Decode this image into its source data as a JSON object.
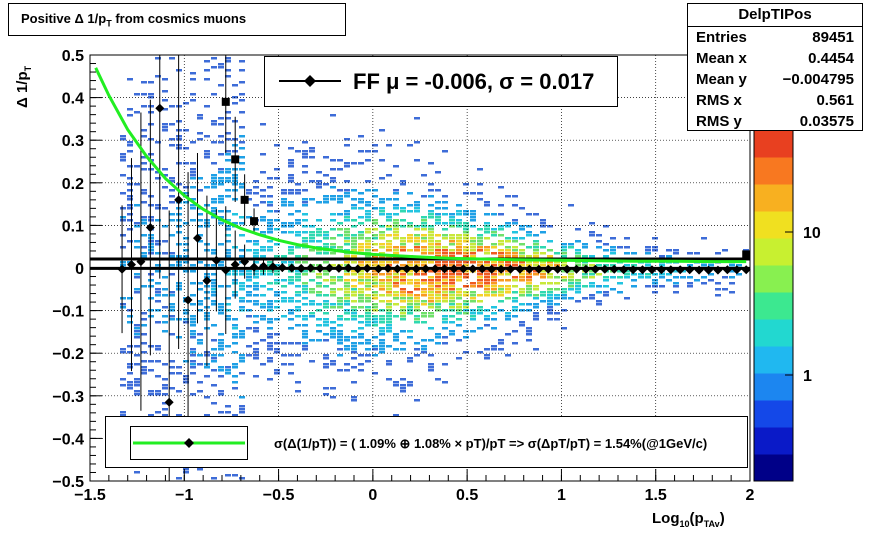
{
  "title": "Positive Δ 1/p_T  from cosmics muons",
  "title_parts": {
    "pre": "Positive Δ 1/p",
    "sub": "T",
    "post": "  from cosmics muons"
  },
  "x_axis_title": {
    "pre": "Log",
    "sub1": "10",
    "mid": "(p",
    "sub2": "TAv",
    "post": ")"
  },
  "y_axis_title": {
    "pre": "Δ 1/p",
    "sub": "T"
  },
  "stats": {
    "name": "DelpTIPos",
    "rows": [
      {
        "label": "Entries",
        "value": "89451"
      },
      {
        "label": "Mean x",
        "value": "0.4454"
      },
      {
        "label": "Mean y",
        "value": "−0.004795"
      },
      {
        "label": "RMS x",
        "value": "0.561"
      },
      {
        "label": "RMS y",
        "value": "0.03575"
      }
    ]
  },
  "fit_label": "FF μ = -0.006, σ =   0.017",
  "legend_label": "σ(Δ(1/pT)) = ( 1.09% ⊕  1.08% × pT)/pT => σ(ΔpT/pT) =  1.54%(@1GeV/c)",
  "colors": {
    "fit_curve": "#22ee22",
    "markers": "#000000",
    "band_lines": "#000000"
  },
  "chart_data": {
    "type": "heatmap",
    "xlim": [
      -1.5,
      2.0
    ],
    "ylim": [
      -0.5,
      0.5
    ],
    "x_ticks": [
      -1.5,
      -1,
      -0.5,
      0,
      0.5,
      1,
      1.5,
      2
    ],
    "x_tick_labels": [
      "−1.5",
      "−1",
      "−0.5",
      "0",
      "0.5",
      "1",
      "1.5",
      "2"
    ],
    "y_ticks": [
      -0.5,
      -0.4,
      -0.3,
      -0.2,
      -0.1,
      0,
      0.1,
      0.2,
      0.3,
      0.4,
      0.5
    ],
    "y_tick_labels": [
      "−0.5",
      "−0.4",
      "−0.3",
      "−0.2",
      "−0.1",
      "0",
      "0.1",
      "0.2",
      "0.3",
      "0.4",
      "0.5"
    ],
    "grid": true,
    "z_scale": "log",
    "z_tick_labels": [
      "1",
      "10"
    ],
    "mean_points": {
      "x": [
        -1.33,
        -1.28,
        -1.23,
        -1.18,
        -1.13,
        -1.08,
        -1.03,
        -0.98,
        -0.93,
        -0.88,
        -0.83,
        -0.78,
        -0.73,
        -0.68,
        -0.63,
        -0.58,
        -0.53,
        -0.48,
        -0.43,
        -0.38,
        -0.33,
        -0.28,
        -0.23,
        -0.18,
        -0.13,
        -0.08,
        -0.03,
        0.03,
        0.08,
        0.13,
        0.18,
        0.23,
        0.28,
        0.33,
        0.38,
        0.43,
        0.48,
        0.53,
        0.58,
        0.63,
        0.68,
        0.73,
        0.78,
        0.83,
        0.88,
        0.93,
        0.98,
        1.03,
        1.08,
        1.13,
        1.18,
        1.23,
        1.28,
        1.33,
        1.38,
        1.43,
        1.48,
        1.53,
        1.58,
        1.63,
        1.68,
        1.73,
        1.78,
        1.83,
        1.88,
        1.93,
        1.98
      ],
      "y": [
        -0.003,
        0.008,
        0.015,
        0.095,
        0.375,
        -0.315,
        0.16,
        -0.075,
        0.07,
        -0.03,
        0.018,
        -0.005,
        0.008,
        0.015,
        0.002,
        0.004,
        0.003,
        0.001,
        0.0,
        -0.001,
        0.0,
        -0.001,
        0.0,
        -0.001,
        0.0,
        -0.002,
        -0.001,
        -0.002,
        -0.001,
        -0.002,
        -0.002,
        -0.002,
        -0.002,
        -0.002,
        -0.002,
        -0.002,
        -0.002,
        -0.002,
        -0.002,
        -0.003,
        -0.003,
        -0.003,
        -0.003,
        -0.003,
        -0.003,
        -0.003,
        -0.003,
        -0.003,
        -0.003,
        -0.003,
        -0.003,
        -0.003,
        -0.003,
        -0.004,
        -0.004,
        -0.004,
        -0.004,
        -0.004,
        -0.004,
        -0.004,
        -0.004,
        -0.005,
        -0.005,
        -0.005,
        -0.004,
        -0.004,
        -0.004
      ],
      "yerr": [
        0.15,
        0.25,
        0.35,
        0.3,
        0.4,
        0.45,
        0.35,
        0.3,
        0.2,
        0.2,
        0.12,
        0.15,
        0.08,
        0.04,
        0.02,
        0.02,
        0.015,
        0.01,
        0.01,
        0.008,
        0.006,
        0.005,
        0.005,
        0.004,
        0.004,
        0.003,
        0.003,
        0.003,
        0.003,
        0.003,
        0.003,
        0.003,
        0.003,
        0.003,
        0.003,
        0.003,
        0.003,
        0.003,
        0.003,
        0.003,
        0.003,
        0.003,
        0.003,
        0.003,
        0.003,
        0.003,
        0.003,
        0.003,
        0.003,
        0.003,
        0.003,
        0.003,
        0.003,
        0.003,
        0.003,
        0.003,
        0.003,
        0.003,
        0.003,
        0.003,
        0.003,
        0.003,
        0.003,
        0.003,
        0.003,
        0.003,
        0.003
      ]
    },
    "sigma_points": {
      "x": [
        -0.78,
        -0.73,
        -0.68,
        -0.63,
        1.98
      ],
      "y": [
        0.39,
        0.255,
        0.16,
        0.11,
        0.032
      ],
      "yerr": [
        0.12,
        0.1,
        0.06,
        0.03,
        0.004
      ]
    },
    "fit_curve": {
      "name": "σ(Δ(1/pT))",
      "x": [
        -1.47,
        -1.4,
        -1.3,
        -1.2,
        -1.1,
        -1.0,
        -0.9,
        -0.8,
        -0.7,
        -0.6,
        -0.5,
        -0.4,
        -0.3,
        -0.2,
        -0.1,
        0.0,
        0.2,
        0.4,
        0.6,
        0.8,
        1.0,
        1.2,
        1.4,
        1.6,
        1.8,
        1.98
      ],
      "y": [
        0.47,
        0.405,
        0.325,
        0.262,
        0.21,
        0.17,
        0.138,
        0.113,
        0.093,
        0.078,
        0.065,
        0.055,
        0.047,
        0.041,
        0.036,
        0.032,
        0.027,
        0.023,
        0.021,
        0.019,
        0.018,
        0.017,
        0.016,
        0.016,
        0.015,
        0.015
      ]
    },
    "band_lines_y": [
      0.021,
      -0.001
    ],
    "band_lines_x": [
      -1.5,
      2.0
    ]
  }
}
